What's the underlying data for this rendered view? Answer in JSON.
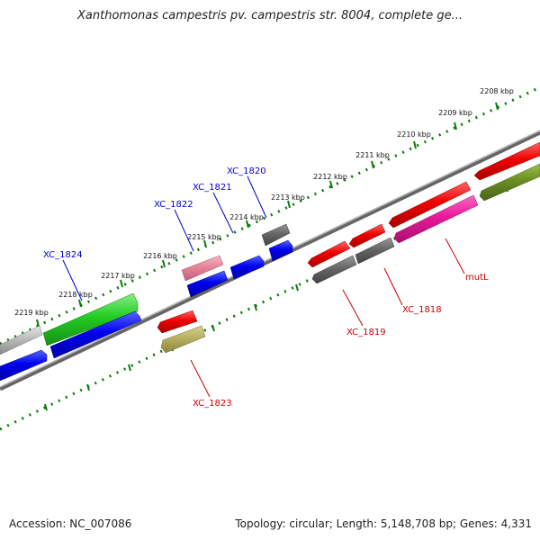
{
  "title": "Xanthomonas campestris pv. campestris str. 8004, complete ge...",
  "footer": {
    "accession": "Accession: NC_007086",
    "summary": "Topology: circular; Length: 5,148,708 bp; Genes: 4,331"
  },
  "kbp_ticks": [
    "2208 kbp",
    "2209 kbp",
    "2210 kbp",
    "2211 kbp",
    "2212 kbp",
    "2213 kbp",
    "2214 kbp",
    "2215 kbp",
    "2216 kbp",
    "2217 kbp",
    "2218 kbp",
    "2219 kbp"
  ],
  "gene_labels": {
    "xc1820": "XC_1820",
    "xc1821": "XC_1821",
    "xc1822": "XC_1822",
    "xc1824": "XC_1824",
    "xc1823": "XC_1823",
    "xc1819": "XC_1819",
    "xc1818": "XC_1818",
    "mutl": "mutL"
  },
  "colors": {
    "forward_label": "#0000cc",
    "reverse_label": "#cc0000",
    "tick_green": "#0b7a0b",
    "backbone": "#888888",
    "blue_gene": "#0000ee",
    "red_gene": "#ee0000",
    "green_gene": "#22cc22",
    "grey_gene": "#666666",
    "pink_gene": "#e8849a",
    "magenta_gene": "#e8189a",
    "olive_gene": "#6b8e23",
    "khaki_gene": "#b8b060",
    "light_grey_gene": "#bbbbbb"
  }
}
